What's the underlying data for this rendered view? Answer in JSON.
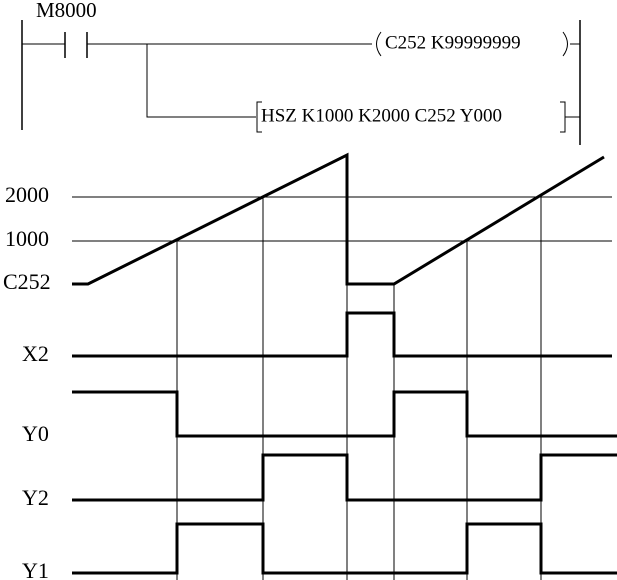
{
  "ladder": {
    "contact": "M8000",
    "coil": "C252   K99999999",
    "instruction": "HSZ K1000  K2000 C252  Y000"
  },
  "timing": {
    "labels": [
      "2000",
      "1000",
      "C252",
      "X2",
      "Y0",
      "Y2",
      "Y1"
    ]
  }
}
